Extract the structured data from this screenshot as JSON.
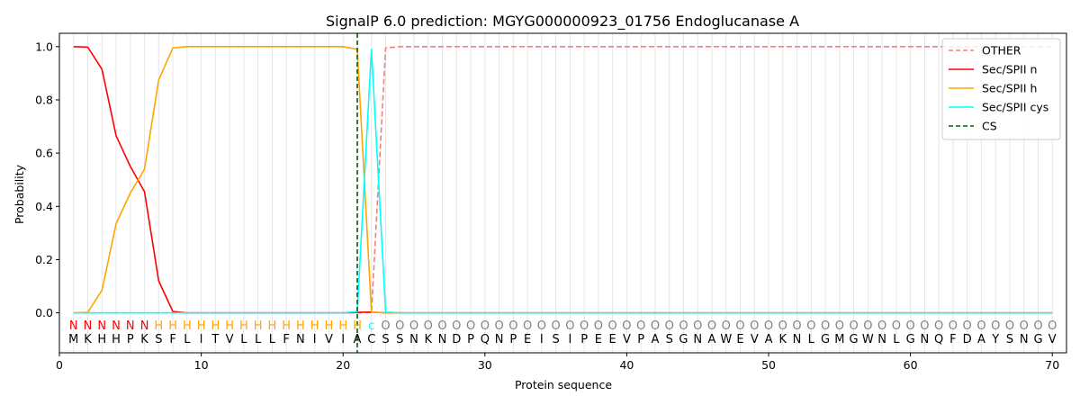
{
  "chart_data": {
    "type": "line",
    "title": "SignalP 6.0 prediction: MGYG000000923_01756 Endoglucanase A",
    "xlabel": "Protein sequence",
    "ylabel": "Probability",
    "xlim": [
      0,
      71
    ],
    "ylim": [
      -0.15,
      1.05
    ],
    "xticks": [
      0,
      10,
      20,
      30,
      40,
      50,
      60,
      70
    ],
    "yticks": [
      0.0,
      0.2,
      0.4,
      0.6,
      0.8,
      1.0
    ],
    "ytick_labels": [
      "0.0",
      "0.2",
      "0.4",
      "0.6",
      "0.8",
      "1.0"
    ],
    "grid": "vertical lines at each residue",
    "legend_position": "top-right",
    "sequence": [
      "M",
      "K",
      "H",
      "H",
      "P",
      "K",
      "S",
      "F",
      "L",
      "I",
      "T",
      "V",
      "L",
      "L",
      "L",
      "F",
      "N",
      "I",
      "V",
      "I",
      "A",
      "C",
      "S",
      "S",
      "N",
      "K",
      "N",
      "D",
      "P",
      "Q",
      "N",
      "P",
      "E",
      "I",
      "S",
      "I",
      "P",
      "E",
      "E",
      "V",
      "P",
      "A",
      "S",
      "G",
      "N",
      "A",
      "W",
      "E",
      "V",
      "A",
      "K",
      "N",
      "L",
      "G",
      "M",
      "G",
      "W",
      "N",
      "L",
      "G",
      "N",
      "Q",
      "F",
      "D",
      "A",
      "Y",
      "S",
      "N",
      "G",
      "V"
    ],
    "region_labels": [
      "N",
      "N",
      "N",
      "N",
      "N",
      "N",
      "H",
      "H",
      "H",
      "H",
      "H",
      "H",
      "H",
      "H",
      "H",
      "H",
      "H",
      "H",
      "H",
      "H",
      "H",
      "c",
      "O",
      "O",
      "O",
      "O",
      "O",
      "O",
      "O",
      "O",
      "O",
      "O",
      "O",
      "O",
      "O",
      "O",
      "O",
      "O",
      "O",
      "O",
      "O",
      "O",
      "O",
      "O",
      "O",
      "O",
      "O",
      "O",
      "O",
      "O",
      "O",
      "O",
      "O",
      "O",
      "O",
      "O",
      "O",
      "O",
      "O",
      "O",
      "O",
      "O",
      "O",
      "O",
      "O",
      "O",
      "O",
      "O",
      "O",
      "O"
    ],
    "region_colors": {
      "N": "#ff0000",
      "H": "#ffa500",
      "c": "#00ffff",
      "O": "#808080"
    },
    "series": [
      {
        "name": "OTHER",
        "color": "#f08080",
        "dash": "dashed",
        "values": [
          0,
          0,
          0,
          0,
          0,
          0,
          0,
          0,
          0,
          0,
          0,
          0,
          0,
          0,
          0,
          0,
          0,
          0,
          0,
          0,
          0,
          0.001,
          0.995,
          1,
          1,
          1,
          1,
          1,
          1,
          1,
          1,
          1,
          1,
          1,
          1,
          1,
          1,
          1,
          1,
          1,
          1,
          1,
          1,
          1,
          1,
          1,
          1,
          1,
          1,
          1,
          1,
          1,
          1,
          1,
          1,
          1,
          1,
          1,
          1,
          1,
          1,
          1,
          1,
          1,
          1,
          1,
          1,
          1,
          1,
          1
        ]
      },
      {
        "name": "Sec/SPII n",
        "color": "#ff0000",
        "dash": "solid",
        "values": [
          1.0,
          0.998,
          0.915,
          0.665,
          0.55,
          0.455,
          0.12,
          0.005,
          0,
          0,
          0,
          0,
          0,
          0,
          0,
          0,
          0,
          0,
          0,
          0,
          0.002,
          0.003,
          0,
          0,
          0,
          0,
          0,
          0,
          0,
          0,
          0,
          0,
          0,
          0,
          0,
          0,
          0,
          0,
          0,
          0,
          0,
          0,
          0,
          0,
          0,
          0,
          0,
          0,
          0,
          0,
          0,
          0,
          0,
          0,
          0,
          0,
          0,
          0,
          0,
          0,
          0,
          0,
          0,
          0,
          0,
          0,
          0,
          0,
          0,
          0
        ]
      },
      {
        "name": "Sec/SPII h",
        "color": "#ffa500",
        "dash": "solid",
        "values": [
          0,
          0.002,
          0.085,
          0.335,
          0.45,
          0.54,
          0.875,
          0.995,
          1.0,
          1.0,
          1.0,
          1.0,
          1.0,
          1.0,
          1.0,
          1.0,
          1.0,
          1.0,
          1.0,
          1.0,
          0.99,
          0.003,
          0,
          0,
          0,
          0,
          0,
          0,
          0,
          0,
          0,
          0,
          0,
          0,
          0,
          0,
          0,
          0,
          0,
          0,
          0,
          0,
          0,
          0,
          0,
          0,
          0,
          0,
          0,
          0,
          0,
          0,
          0,
          0,
          0,
          0,
          0,
          0,
          0,
          0,
          0,
          0,
          0,
          0,
          0,
          0,
          0,
          0,
          0,
          0
        ]
      },
      {
        "name": "Sec/SPII cys",
        "color": "#00ffff",
        "dash": "solid",
        "values": [
          0,
          0,
          0,
          0,
          0,
          0,
          0,
          0,
          0,
          0,
          0,
          0,
          0,
          0,
          0,
          0,
          0,
          0,
          0,
          0,
          0.005,
          0.99,
          0.003,
          0,
          0,
          0,
          0,
          0,
          0,
          0,
          0,
          0,
          0,
          0,
          0,
          0,
          0,
          0,
          0,
          0,
          0,
          0,
          0,
          0,
          0,
          0,
          0,
          0,
          0,
          0,
          0,
          0,
          0,
          0,
          0,
          0,
          0,
          0,
          0,
          0,
          0,
          0,
          0,
          0,
          0,
          0,
          0,
          0,
          0,
          0
        ]
      },
      {
        "name": "CS",
        "color": "#006400",
        "dash": "dashed",
        "vertical_x": 21
      }
    ]
  }
}
